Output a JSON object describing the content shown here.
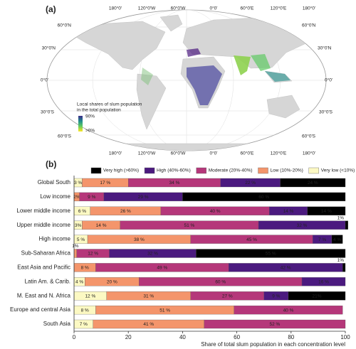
{
  "panel_a": {
    "panel_label": "(a)",
    "lon_labels_top": [
      "180°0'",
      "120°0'W",
      "60°0'W",
      "0°0'",
      "60°0'E",
      "120°0'E",
      "180°0'"
    ],
    "lon_labels_bottom": [
      "180°0'",
      "120°0'W",
      "60°0'W",
      "0°0'",
      "60°0'E",
      "120°0'E",
      "180°0'"
    ],
    "lat_labels_left": [
      "60°0'N",
      "30°0'N",
      "0°0'",
      "30°0'S",
      "60°0'S"
    ],
    "lat_labels_right": [
      "60°0'N",
      "30°0'N",
      "0°0'",
      "30°0'S",
      "60°0'S"
    ],
    "legend_title": [
      "Local shares of slum population",
      "in the total population"
    ],
    "legend_max": "90%",
    "legend_min": ">0%"
  },
  "chart_data": {
    "type": "bar",
    "orientation": "horizontal",
    "stacked": true,
    "panel_label": "(b)",
    "categories": [
      "Global South",
      "Low income",
      "Lower middle income",
      "Upper middle income",
      "High income",
      "Sub-Saharan Africa",
      "East Asia and Pacific",
      "Latin Am. & Carib.",
      "M. East and N. Africa",
      "Europe and central Asia",
      "South Asia"
    ],
    "series": [
      {
        "name": "Very high (>60%)",
        "color": "#000000",
        "values": [
          24,
          60,
          14,
          1,
          4,
          55,
          1,
          null,
          21,
          null,
          null
        ],
        "value_labels": [
          "24 %",
          "60 %",
          "14 %",
          "1%",
          "4 %",
          "55 %",
          "1%",
          null,
          "21%",
          null,
          null
        ]
      },
      {
        "name": "High (40%-60%)",
        "color": "#4b1a7f",
        "values": [
          22,
          29,
          14,
          32,
          7,
          32,
          42,
          16,
          9,
          null,
          null
        ],
        "value_labels": [
          "22 %",
          "29 %",
          "14 %",
          "32 %",
          "7 %",
          "32 %",
          "42 %",
          "16 %",
          "9 %",
          null,
          null
        ]
      },
      {
        "name": "Moderate (20%-40%)",
        "color": "#b5377a",
        "values": [
          34,
          9,
          40,
          51,
          45,
          12,
          49,
          60,
          27,
          40,
          52
        ],
        "value_labels": [
          "34 %",
          "9 %",
          "40 %",
          "51 %",
          "45 %",
          "12 %",
          "49 %",
          "60 %",
          "27 %",
          "40 %",
          "52 %"
        ]
      },
      {
        "name": "Low (10%-20%)",
        "color": "#f4956b",
        "values": [
          17,
          2,
          26,
          14,
          38,
          1,
          8,
          20,
          31,
          51,
          41
        ],
        "value_labels": [
          "17 %",
          "2%",
          "26 %",
          "14 %",
          "38 %",
          "1%",
          "8 %",
          "20 %",
          "31 %",
          "51 %",
          "41 %"
        ]
      },
      {
        "name": "Very low (<10%)",
        "color": "#fcf9c3",
        "values": [
          3,
          null,
          6,
          3,
          5,
          null,
          null,
          4,
          12,
          8,
          7
        ],
        "value_labels": [
          "3 %",
          null,
          "6 %",
          "3%",
          "5 %",
          null,
          null,
          "4 %",
          "12 %",
          "8 %",
          "7 %"
        ]
      }
    ],
    "xlim": [
      0,
      100
    ],
    "xticks": [
      0,
      20,
      40,
      60,
      80,
      100
    ],
    "xlabel": "Share of total slum population in each concentration level"
  }
}
